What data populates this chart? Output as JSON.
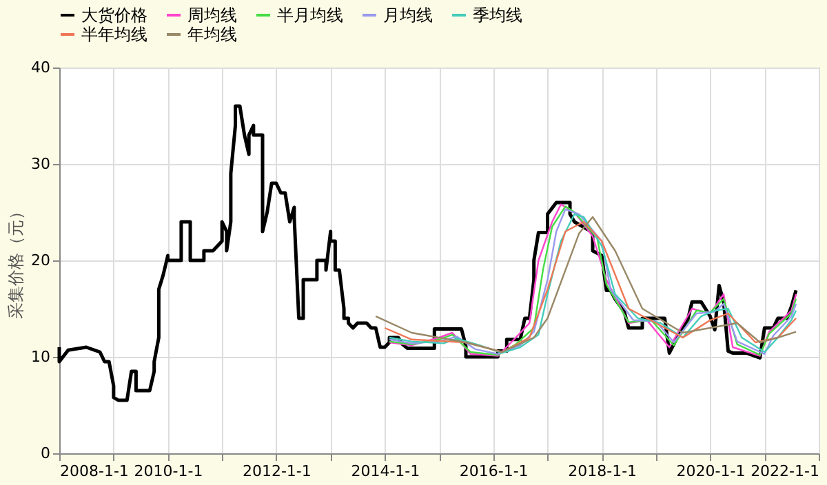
{
  "chart_data": {
    "type": "line",
    "ylabel": "采集价格（元）",
    "xlim": [
      "2008-01-01",
      "2022-01-01"
    ],
    "ylim": [
      0,
      40
    ],
    "yticks": [
      0,
      10,
      20,
      30,
      40
    ],
    "xticks": [
      {
        "value": "2008-01-01",
        "label": "2008-1-1"
      },
      {
        "value": "2009-01-01",
        "label": null
      },
      {
        "value": "2010-01-01",
        "label": "2010-1-1"
      },
      {
        "value": "2011-01-01",
        "label": null
      },
      {
        "value": "2012-01-01",
        "label": "2012-1-1"
      },
      {
        "value": "2013-01-01",
        "label": null
      },
      {
        "value": "2014-01-01",
        "label": "2014-1-1"
      },
      {
        "value": "2015-01-01",
        "label": null
      },
      {
        "value": "2016-01-01",
        "label": "2016-1-1"
      },
      {
        "value": "2017-01-01",
        "label": null
      },
      {
        "value": "2018-01-01",
        "label": "2018-1-1"
      },
      {
        "value": "2019-01-01",
        "label": null
      },
      {
        "value": "2020-01-01",
        "label": "2020-1-1"
      },
      {
        "value": "2021-01-01",
        "label": null
      },
      {
        "value": "2022-01-01",
        "label": "2022-1-1"
      }
    ],
    "grid": true,
    "legend": "top",
    "line_style": "solid",
    "marker": "none",
    "series": [
      {
        "name": "大货价格",
        "color": "#000000",
        "x": [
          "2008-01",
          "2008-01",
          "2008-03",
          "2008-07",
          "2008-10",
          "2008-11",
          "2008-12",
          "2009-01",
          "2009-01",
          "2009-02",
          "2009-04",
          "2009-05",
          "2009-06",
          "2009-06",
          "2009-09",
          "2009-10",
          "2009-10",
          "2009-11",
          "2009-11",
          "2009-12",
          "2010-01",
          "2010-01",
          "2010-04",
          "2010-04",
          "2010-06",
          "2010-06",
          "2010-09",
          "2010-09",
          "2010-11",
          "2011-01",
          "2011-01",
          "2011-02",
          "2011-02",
          "2011-03",
          "2011-03",
          "2011-04",
          "2011-04",
          "2011-05",
          "2011-06",
          "2011-07",
          "2011-07",
          "2011-08",
          "2011-08",
          "2011-10",
          "2011-10",
          "2011-11",
          "2011-12",
          "2012-01",
          "2012-02",
          "2012-03",
          "2012-04",
          "2012-05",
          "2012-05",
          "2012-06",
          "2012-07",
          "2012-07",
          "2012-10",
          "2012-10",
          "2012-12",
          "2012-12",
          "2013-01",
          "2013-01",
          "2013-02",
          "2013-02",
          "2013-03",
          "2013-04",
          "2013-04",
          "2013-05",
          "2013-05",
          "2013-06",
          "2013-07",
          "2013-09",
          "2013-10",
          "2013-11",
          "2013-12",
          "2014-01",
          "2014-02",
          "2014-02",
          "2014-04",
          "2014-05",
          "2014-06",
          "2014-12",
          "2014-12",
          "2015-06",
          "2015-07",
          "2015-07",
          "2016-02",
          "2016-02",
          "2016-04",
          "2016-04",
          "2016-07",
          "2016-08",
          "2016-09",
          "2016-10",
          "2016-10",
          "2016-11",
          "2017-01",
          "2017-01",
          "2017-03",
          "2017-06",
          "2017-06",
          "2017-07",
          "2017-11",
          "2017-11",
          "2018-01",
          "2018-02",
          "2018-03",
          "2018-04",
          "2018-06",
          "2018-07",
          "2018-10",
          "2018-10",
          "2019-03",
          "2019-04",
          "2019-04",
          "2019-05",
          "2019-06",
          "2019-07",
          "2019-08",
          "2019-09",
          "2019-11",
          "2020-01",
          "2020-02",
          "2020-03",
          "2020-04",
          "2020-05",
          "2020-06",
          "2020-09",
          "2020-12",
          "2020-12",
          "2021-01",
          "2021-03",
          "2021-04",
          "2021-06",
          "2021-07",
          "2021-08"
        ],
        "values": [
          11,
          9.5,
          10.7,
          11,
          10.5,
          9.5,
          9.5,
          7,
          5.8,
          5.5,
          5.5,
          8.5,
          8.5,
          6.5,
          6.5,
          8.5,
          9.5,
          12,
          17,
          18.5,
          20.5,
          20,
          20,
          24,
          24,
          20,
          20,
          21,
          21,
          22,
          24,
          23,
          21,
          24,
          29,
          34,
          36,
          36,
          33,
          31,
          33,
          34,
          33,
          33,
          23,
          25,
          28,
          28,
          27,
          27,
          24,
          25.5,
          24.5,
          14,
          14,
          18,
          18,
          20,
          20,
          19,
          23,
          22,
          22,
          19,
          19,
          15,
          14,
          14,
          13.5,
          13,
          13.5,
          13.5,
          13,
          13,
          11,
          11,
          11.5,
          12,
          12,
          11.3,
          10.9,
          10.9,
          12.9,
          12.9,
          11.1,
          10,
          10,
          10.6,
          10.6,
          11.8,
          11.8,
          14,
          14,
          18,
          20,
          22.9,
          22.9,
          24.8,
          26,
          26,
          24.8,
          24,
          22.9,
          21,
          20.5,
          16.9,
          16.9,
          16,
          14.7,
          13,
          13,
          14,
          14,
          10.4,
          10.4,
          11.3,
          12.3,
          13,
          13.7,
          15.7,
          15.7,
          14.2,
          12.8,
          17.4,
          15.7,
          10.6,
          10.4,
          10.4,
          9.9,
          9.9,
          13,
          13,
          14,
          14,
          15.2,
          16.9
        ]
      },
      {
        "name": "周均线",
        "color": "#ff44cc",
        "x": [
          "2014-02",
          "2014-07",
          "2015-01",
          "2015-04",
          "2015-08",
          "2016-02",
          "2016-05",
          "2016-09",
          "2016-11",
          "2017-02",
          "2017-04",
          "2017-07",
          "2017-11",
          "2018-02",
          "2018-07",
          "2018-11",
          "2019-04",
          "2019-09",
          "2020-01",
          "2020-04",
          "2020-06",
          "2020-12",
          "2021-02",
          "2021-07",
          "2021-08"
        ],
        "values": [
          11.5,
          11.2,
          12,
          12.5,
          10.3,
          10.1,
          11.5,
          13.5,
          20,
          24,
          25.8,
          25,
          22.5,
          18,
          13.5,
          13.8,
          11,
          15,
          14.5,
          16.5,
          11,
          10.1,
          12.6,
          14.8,
          16.5
        ]
      },
      {
        "name": "半月均线",
        "color": "#44dd44",
        "x": [
          "2014-02",
          "2014-07",
          "2015-01",
          "2015-04",
          "2015-08",
          "2016-02",
          "2016-06",
          "2016-10",
          "2016-12",
          "2017-02",
          "2017-05",
          "2017-07",
          "2017-12",
          "2018-02",
          "2018-07",
          "2018-12",
          "2019-05",
          "2019-10",
          "2020-01",
          "2020-04",
          "2020-07",
          "2020-12",
          "2021-02",
          "2021-07",
          "2021-08"
        ],
        "values": [
          11.6,
          11.3,
          11.8,
          12.3,
          10.5,
          10.2,
          11.3,
          13,
          19,
          23.5,
          25.6,
          25,
          22.3,
          17.5,
          13.6,
          13.8,
          11.2,
          14.8,
          14.6,
          16,
          11.3,
          10.2,
          12.4,
          14.5,
          16
        ]
      },
      {
        "name": "月均线",
        "color": "#9999ee",
        "x": [
          "2014-02",
          "2014-07",
          "2015-01",
          "2015-05",
          "2015-09",
          "2016-02",
          "2016-07",
          "2016-10",
          "2017-01",
          "2017-03",
          "2017-05",
          "2017-08",
          "2018-01",
          "2018-03",
          "2018-08",
          "2019-01",
          "2019-05",
          "2019-10",
          "2020-02",
          "2020-04",
          "2020-07",
          "2021-01",
          "2021-03",
          "2021-07",
          "2021-08"
        ],
        "values": [
          11.8,
          11.4,
          11.6,
          12.1,
          10.8,
          10.3,
          11.2,
          12.6,
          18,
          23,
          25.3,
          24.8,
          22,
          17,
          13.8,
          13.7,
          11.5,
          14.5,
          14.7,
          15.5,
          11.6,
          10.3,
          12.2,
          14.2,
          15.5
        ]
      },
      {
        "name": "季均线",
        "color": "#44ccbb",
        "x": [
          "2014-02",
          "2014-07",
          "2015-02",
          "2015-05",
          "2015-10",
          "2016-03",
          "2016-07",
          "2016-11",
          "2017-01",
          "2017-04",
          "2017-07",
          "2017-09",
          "2018-01",
          "2018-04",
          "2018-09",
          "2019-02",
          "2019-07",
          "2019-11",
          "2020-02",
          "2020-05",
          "2020-08",
          "2021-01",
          "2021-04",
          "2021-07",
          "2021-08"
        ],
        "values": [
          12,
          11.6,
          11.4,
          11.9,
          11.2,
          10.4,
          11,
          12.3,
          16.5,
          22,
          24.8,
          24.5,
          21.5,
          16.5,
          14,
          13.5,
          12,
          14.2,
          14.8,
          15,
          12,
          10.5,
          12,
          13.8,
          14.8
        ]
      },
      {
        "name": "半年均线",
        "color": "#ee7755",
        "x": [
          "2014-01",
          "2014-07",
          "2015-07",
          "2016-03",
          "2016-09",
          "2017-01",
          "2017-05",
          "2017-09",
          "2018-01",
          "2018-07",
          "2019-01",
          "2019-07",
          "2020-01",
          "2020-05",
          "2020-11",
          "2021-04",
          "2021-08"
        ],
        "values": [
          13,
          11.8,
          11.5,
          10.5,
          12,
          17,
          23,
          24,
          22,
          15,
          13.5,
          12,
          13.8,
          14.5,
          11.5,
          12,
          14
        ]
      },
      {
        "name": "年均线",
        "color": "#998866",
        "x": [
          "2013-11",
          "2014-07",
          "2015-07",
          "2016-03",
          "2016-10",
          "2017-01",
          "2017-08",
          "2017-11",
          "2018-04",
          "2018-10",
          "2019-07",
          "2020-01",
          "2020-07",
          "2020-12",
          "2021-04",
          "2021-08"
        ],
        "values": [
          14.2,
          12.5,
          11.5,
          10.5,
          12,
          14,
          22.8,
          24.5,
          21,
          15,
          12.5,
          13,
          13.5,
          11.5,
          12,
          12.6
        ]
      }
    ]
  }
}
